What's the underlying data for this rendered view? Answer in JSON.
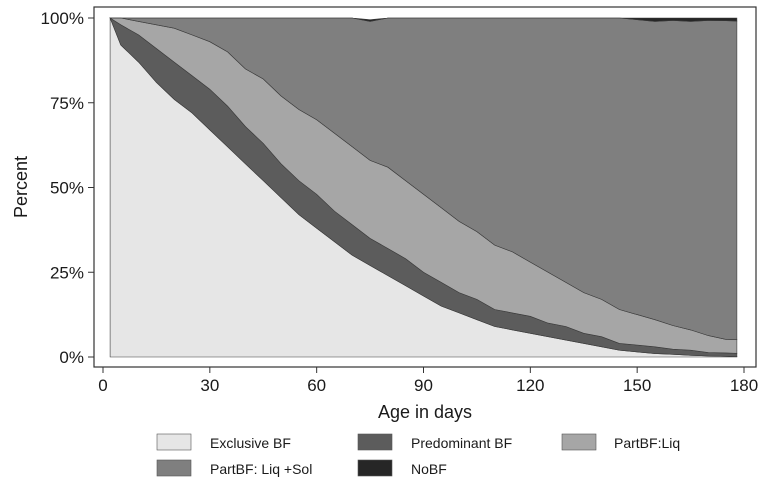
{
  "chart_data": {
    "type": "area",
    "stacked": true,
    "normalized_percent": true,
    "xlabel": "Age in days",
    "ylabel": "Percent",
    "xlim": [
      0,
      180
    ],
    "ylim": [
      0,
      100
    ],
    "x_ticks": [
      0,
      30,
      60,
      90,
      120,
      150,
      180
    ],
    "y_ticks": [
      0,
      25,
      50,
      75,
      100
    ],
    "y_tick_labels": [
      "0%",
      "25%",
      "50%",
      "75%",
      "100%"
    ],
    "grid": false,
    "legend_position": "bottom",
    "x": [
      2,
      5,
      10,
      15,
      20,
      25,
      30,
      35,
      40,
      45,
      50,
      55,
      60,
      65,
      70,
      75,
      80,
      85,
      90,
      95,
      100,
      105,
      110,
      115,
      120,
      125,
      130,
      135,
      140,
      145,
      150,
      155,
      160,
      165,
      170,
      175,
      178
    ],
    "series": [
      {
        "name": "Exclusive BF",
        "color": "#e6e6e6",
        "values": [
          100,
          92,
          87,
          81,
          76,
          72,
          67,
          62,
          57,
          52,
          47,
          42,
          38,
          34,
          30,
          27,
          24,
          21,
          18,
          15,
          13,
          11,
          9,
          8,
          7,
          6,
          5,
          4,
          3,
          2,
          1.5,
          1,
          0.8,
          0.5,
          0.3,
          0.2,
          0.1
        ]
      },
      {
        "name": "Predominant BF",
        "color": "#5c5c5c",
        "values": [
          0,
          6,
          8,
          10,
          11,
          11,
          12,
          12,
          11,
          11,
          10,
          10,
          10,
          9,
          9,
          8,
          8,
          8,
          7,
          7,
          6,
          6,
          5,
          5,
          5,
          4,
          4,
          3,
          3,
          2,
          2,
          2,
          1.5,
          1.5,
          1,
          1,
          1
        ]
      },
      {
        "name": "PartBF:Liq",
        "color": "#a6a6a6",
        "values": [
          0,
          2,
          4,
          7,
          10,
          12,
          14,
          16,
          17,
          19,
          20,
          21,
          22,
          23,
          23,
          23,
          24,
          23,
          23,
          22,
          21,
          20,
          19,
          18,
          16,
          15,
          13,
          12,
          11,
          10,
          9,
          8,
          7,
          6,
          5,
          4,
          4
        ]
      },
      {
        "name": "PartBF: Liq +Sol",
        "color": "#7f7f7f",
        "values": [
          0,
          0,
          1,
          2,
          3,
          5,
          7,
          10,
          15,
          18,
          23,
          27,
          30,
          34,
          38,
          41,
          44,
          48,
          52,
          56,
          60,
          63,
          67,
          69,
          72,
          75,
          78,
          81,
          83,
          86,
          87,
          88,
          90,
          91,
          93,
          94,
          94
        ]
      },
      {
        "name": "NoBF",
        "color": "#262626",
        "values": [
          0,
          0,
          0,
          0,
          0,
          0,
          0,
          0,
          0,
          0,
          0,
          0,
          0,
          0,
          0.5,
          0.5,
          0.5,
          0.5,
          0.5,
          0.5,
          0.5,
          0.5,
          0.5,
          0.5,
          0.5,
          0.5,
          0.5,
          0.5,
          0.5,
          0.5,
          0.5,
          1,
          0.7,
          1,
          0.7,
          0.8,
          0.9
        ]
      }
    ]
  }
}
